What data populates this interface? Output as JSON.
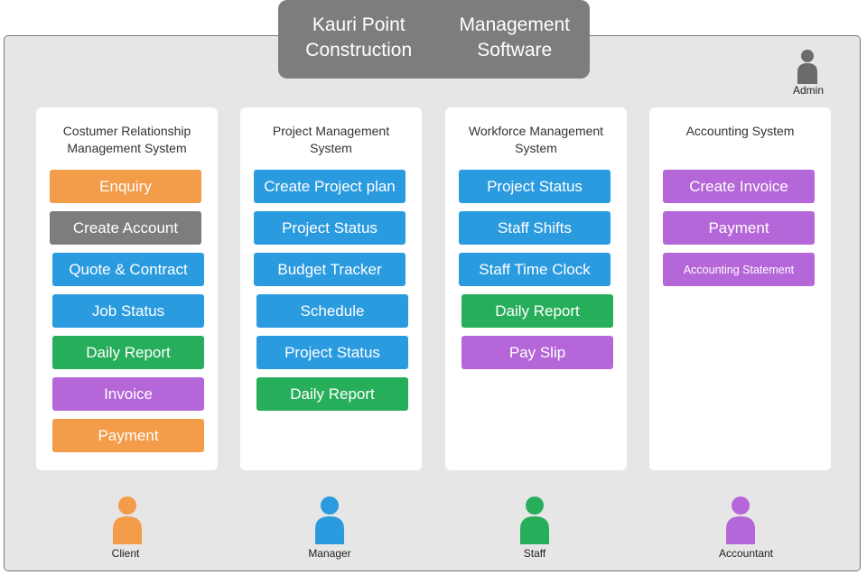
{
  "title": {
    "line1": "Kauri Point Construction",
    "line2": "Management Software"
  },
  "admin": {
    "label": "Admin",
    "color": "#6b6b6b"
  },
  "colors": {
    "orange": "#f39c4a",
    "gray": "#7d7d7d",
    "blue": "#2b9be0",
    "green": "#27ae5a",
    "purple": "#b566d8"
  },
  "panels": [
    {
      "title_line1": "Costumer Relationship",
      "title_line2": "Management System",
      "buttons": [
        {
          "label": "Enquiry",
          "color": "orange"
        },
        {
          "label": "Create Account",
          "color": "gray"
        },
        {
          "label": "Quote & Contract",
          "color": "blue"
        },
        {
          "label": "Job Status",
          "color": "blue"
        },
        {
          "label": "Daily Report",
          "color": "green"
        },
        {
          "label": "Invoice",
          "color": "purple"
        },
        {
          "label": "Payment",
          "color": "orange"
        }
      ]
    },
    {
      "title_line1": "Project Management",
      "title_line2": "System",
      "buttons": [
        {
          "label": "Create Project plan",
          "color": "blue"
        },
        {
          "label": "Project Status",
          "color": "blue"
        },
        {
          "label": "Budget Tracker",
          "color": "blue"
        },
        {
          "label": "Schedule",
          "color": "blue"
        },
        {
          "label": "Project Status",
          "color": "blue"
        },
        {
          "label": "Daily Report",
          "color": "green"
        }
      ]
    },
    {
      "title_line1": "Workforce Management",
      "title_line2": "System",
      "buttons": [
        {
          "label": "Project Status",
          "color": "blue"
        },
        {
          "label": "Staff Shifts",
          "color": "blue"
        },
        {
          "label": "Staff Time Clock",
          "color": "blue"
        },
        {
          "label": "Daily Report",
          "color": "green"
        },
        {
          "label": "Pay Slip",
          "color": "purple"
        }
      ]
    },
    {
      "title_line1": "Accounting System",
      "title_line2": "",
      "buttons": [
        {
          "label": "Create Invoice",
          "color": "purple"
        },
        {
          "label": "Payment",
          "color": "purple"
        },
        {
          "label": "Accounting Statement",
          "color": "purple"
        }
      ]
    }
  ],
  "roles": [
    {
      "label": "Client",
      "color": "#f39c4a"
    },
    {
      "label": "Manager",
      "color": "#2b9be0"
    },
    {
      "label": "Staff",
      "color": "#27ae5a"
    },
    {
      "label": "Accountant",
      "color": "#b566d8"
    }
  ]
}
